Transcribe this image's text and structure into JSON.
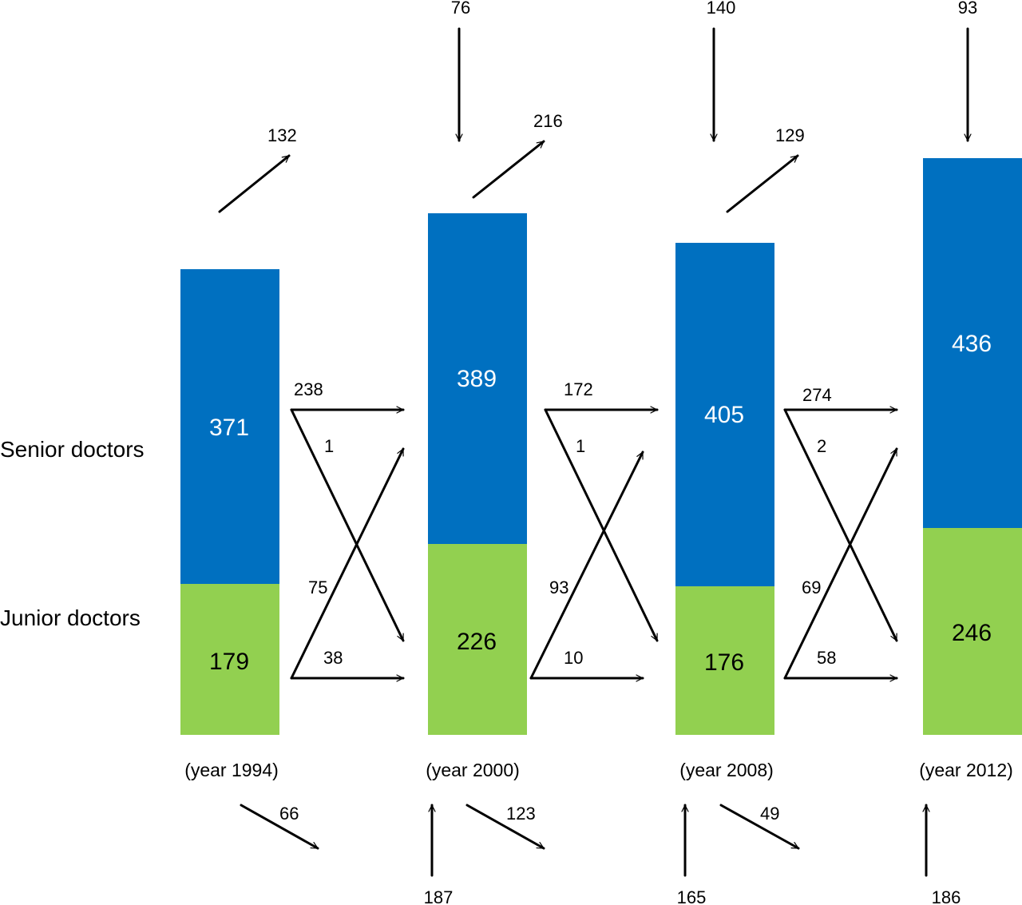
{
  "colors": {
    "senior": "#0070C0",
    "junior": "#92D050",
    "arrow": "#000000"
  },
  "row_labels": {
    "senior": "Senior doctors",
    "junior": "Junior doctors"
  },
  "years": [
    {
      "label": "(year 1994)",
      "senior": "371",
      "junior": "179"
    },
    {
      "label": "(year 2000)",
      "senior": "389",
      "junior": "226"
    },
    {
      "label": "(year 2008)",
      "senior": "405",
      "junior": "176"
    },
    {
      "label": "(year 2012)",
      "senior": "436",
      "junior": "246"
    }
  ],
  "transitions": [
    {
      "senior_to_senior": "238",
      "senior_to_junior": "1",
      "junior_to_senior": "75",
      "junior_to_junior": "38",
      "senior_exit": "132",
      "junior_exit": "66"
    },
    {
      "senior_to_senior": "172",
      "senior_to_junior": "1",
      "junior_to_senior": "93",
      "junior_to_junior": "10",
      "senior_exit": "216",
      "junior_exit": "123"
    },
    {
      "senior_to_senior": "274",
      "senior_to_junior": "2",
      "junior_to_senior": "69",
      "junior_to_junior": "58",
      "senior_exit": "129",
      "junior_exit": "49"
    }
  ],
  "entries": [
    {
      "senior_entry": "76",
      "junior_entry": "187"
    },
    {
      "senior_entry": "140",
      "junior_entry": "165"
    },
    {
      "senior_entry": "93",
      "junior_entry": "186"
    }
  ]
}
